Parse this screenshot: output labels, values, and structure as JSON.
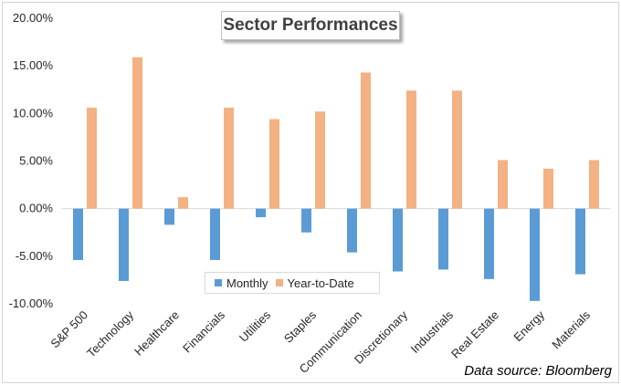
{
  "chart_data": {
    "type": "bar",
    "title": "Sector Performances",
    "categories": [
      "S&P 500",
      "Technology",
      "Healthcare",
      "Financials",
      "Utilities",
      "Staples",
      "Communication",
      "Discretionary",
      "Industrials",
      "Real Estate",
      "Energy",
      "Materials"
    ],
    "series": [
      {
        "name": "Monthly",
        "color": "#5b9bd5",
        "values": [
          -5.4,
          -7.6,
          -1.7,
          -5.4,
          -0.9,
          -2.5,
          -4.6,
          -6.6,
          -6.4,
          -7.4,
          -9.7,
          -6.9
        ]
      },
      {
        "name": "Year-to-Date",
        "color": "#f4b183",
        "values": [
          10.6,
          15.9,
          1.2,
          10.6,
          9.4,
          10.2,
          14.3,
          12.4,
          12.4,
          5.1,
          4.2,
          5.1
        ]
      }
    ],
    "y_ticks": [
      "20.00%",
      "15.00%",
      "10.00%",
      "5.00%",
      "0.00%",
      "-5.00%",
      "-10.00%"
    ],
    "ylim": [
      -10,
      20
    ],
    "xlabel": "",
    "ylabel": "",
    "grid": false,
    "legend_position": "bottom-center",
    "source": "Data source: Bloomberg"
  }
}
